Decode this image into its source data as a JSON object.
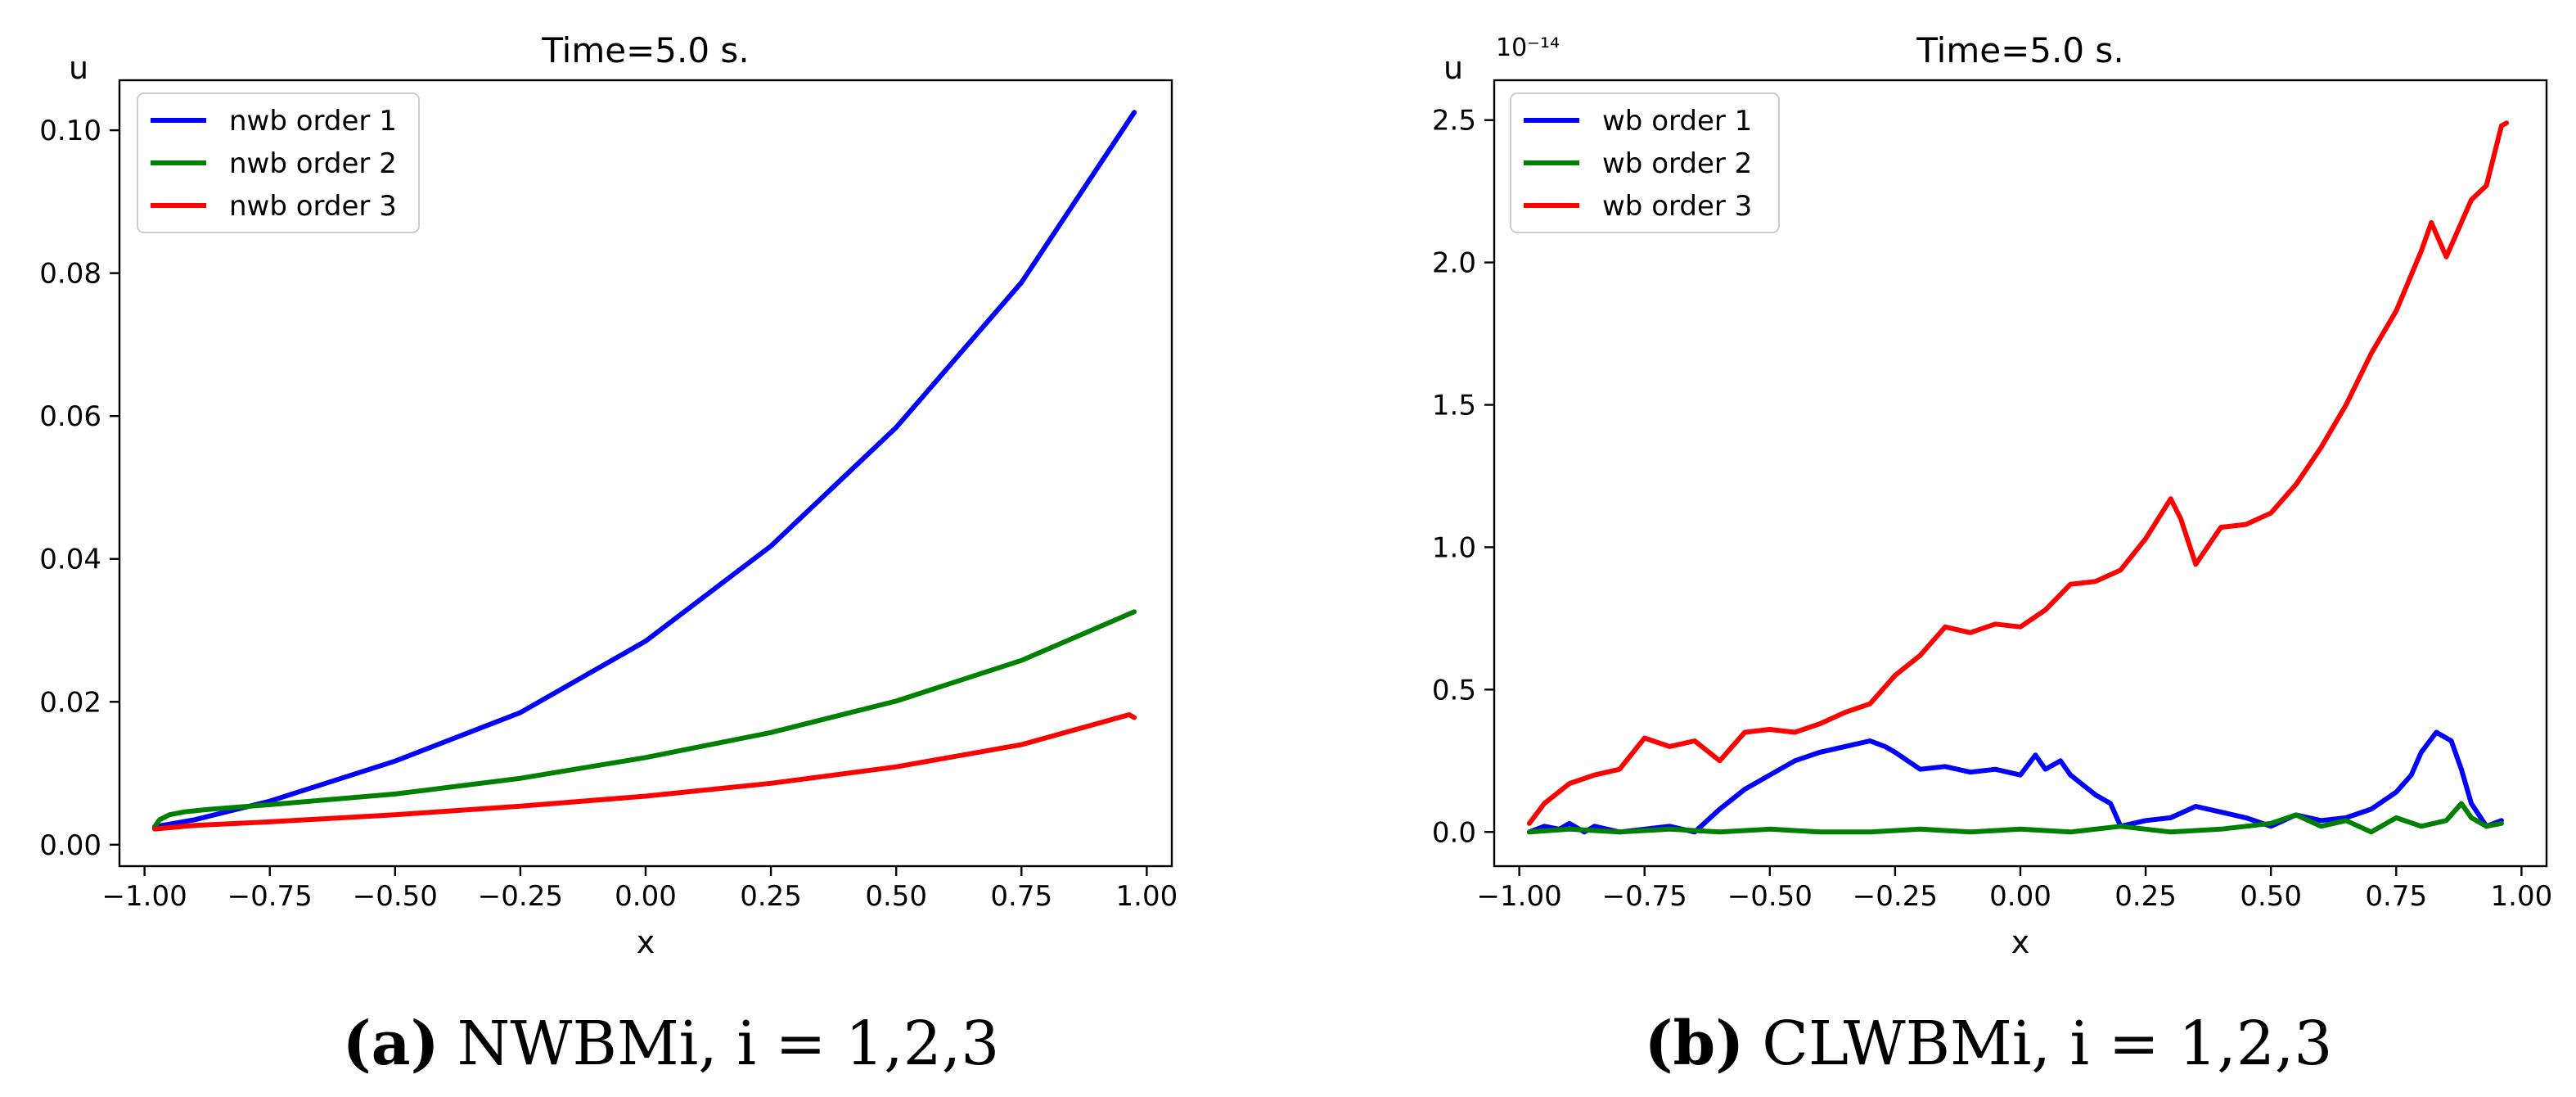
{
  "chart_data": [
    {
      "type": "line",
      "title": "Time=5.0 s.",
      "xlabel": "x",
      "ylabel": "u",
      "xlim": [
        -1.05,
        1.05
      ],
      "ylim": [
        -0.003,
        0.107
      ],
      "xticks": [
        -1.0,
        -0.75,
        -0.5,
        -0.25,
        0.0,
        0.25,
        0.5,
        0.75,
        1.0
      ],
      "xtick_labels": [
        "−1.00",
        "−0.75",
        "−0.50",
        "−0.25",
        "0.00",
        "0.25",
        "0.50",
        "0.75",
        "1.00"
      ],
      "yticks": [
        0.0,
        0.02,
        0.04,
        0.06,
        0.08,
        0.1
      ],
      "ytick_labels": [
        "0.00",
        "0.02",
        "0.04",
        "0.06",
        "0.08",
        "0.10"
      ],
      "legend_position": "top-left",
      "caption": {
        "letter": "(a)",
        "text": "NWBMi, i = 1,2,3"
      },
      "series": [
        {
          "name": "nwb order 1",
          "color": "#0000ff",
          "x": [
            -0.98,
            -0.9,
            -0.75,
            -0.5,
            -0.25,
            0.0,
            0.25,
            0.5,
            0.75,
            0.975
          ],
          "y": [
            0.0025,
            0.0035,
            0.0061,
            0.0117,
            0.0185,
            0.0285,
            0.0418,
            0.0584,
            0.0787,
            0.1025
          ]
        },
        {
          "name": "nwb order 2",
          "color": "#008000",
          "x": [
            -0.98,
            -0.97,
            -0.95,
            -0.92,
            -0.88,
            -0.75,
            -0.5,
            -0.25,
            0.0,
            0.25,
            0.5,
            0.75,
            0.975
          ],
          "y": [
            0.0025,
            0.0035,
            0.0042,
            0.0046,
            0.0049,
            0.0056,
            0.0071,
            0.0093,
            0.0122,
            0.0157,
            0.0201,
            0.0258,
            0.0326
          ]
        },
        {
          "name": "nwb order 3",
          "color": "#ff0000",
          "x": [
            -0.98,
            -0.9,
            -0.75,
            -0.5,
            -0.25,
            0.0,
            0.25,
            0.5,
            0.75,
            0.965,
            0.975
          ],
          "y": [
            0.0022,
            0.0027,
            0.0032,
            0.0042,
            0.0054,
            0.0068,
            0.0086,
            0.0109,
            0.014,
            0.0182,
            0.0178
          ]
        }
      ]
    },
    {
      "type": "line",
      "title": "Time=5.0 s.",
      "xlabel": "x",
      "ylabel": "u",
      "y_scale_label": "10⁻¹⁴",
      "xlim": [
        -1.05,
        1.05
      ],
      "ylim": [
        -0.12,
        2.64
      ],
      "xticks": [
        -1.0,
        -0.75,
        -0.5,
        -0.25,
        0.0,
        0.25,
        0.5,
        0.75,
        1.0
      ],
      "xtick_labels": [
        "−1.00",
        "−0.75",
        "−0.50",
        "−0.25",
        "0.00",
        "0.25",
        "0.50",
        "0.75",
        "1.00"
      ],
      "yticks": [
        0.0,
        0.5,
        1.0,
        1.5,
        2.0,
        2.5
      ],
      "ytick_labels": [
        "0.0",
        "0.5",
        "1.0",
        "1.5",
        "2.0",
        "2.5"
      ],
      "legend_position": "top-left",
      "caption": {
        "letter": "(b)",
        "text": "CLWBMi, i = 1,2,3"
      },
      "series": [
        {
          "name": "wb order 1",
          "color": "#0000ff",
          "x": [
            -0.98,
            -0.95,
            -0.92,
            -0.9,
            -0.87,
            -0.85,
            -0.8,
            -0.75,
            -0.7,
            -0.65,
            -0.6,
            -0.55,
            -0.5,
            -0.45,
            -0.4,
            -0.35,
            -0.3,
            -0.27,
            -0.25,
            -0.2,
            -0.15,
            -0.1,
            -0.05,
            0.0,
            0.03,
            0.05,
            0.08,
            0.1,
            0.15,
            0.18,
            0.2,
            0.25,
            0.3,
            0.35,
            0.4,
            0.45,
            0.5,
            0.55,
            0.6,
            0.65,
            0.7,
            0.75,
            0.78,
            0.8,
            0.83,
            0.86,
            0.88,
            0.9,
            0.93,
            0.96
          ],
          "y": [
            0.0,
            0.02,
            0.01,
            0.03,
            0.0,
            0.02,
            0.0,
            0.01,
            0.02,
            0.0,
            0.08,
            0.15,
            0.2,
            0.25,
            0.28,
            0.3,
            0.32,
            0.3,
            0.28,
            0.22,
            0.23,
            0.21,
            0.22,
            0.2,
            0.27,
            0.22,
            0.25,
            0.2,
            0.13,
            0.1,
            0.02,
            0.04,
            0.05,
            0.09,
            0.07,
            0.05,
            0.02,
            0.06,
            0.04,
            0.05,
            0.08,
            0.14,
            0.2,
            0.28,
            0.35,
            0.32,
            0.22,
            0.1,
            0.02,
            0.04
          ]
        },
        {
          "name": "wb order 2",
          "color": "#008000",
          "x": [
            -0.98,
            -0.9,
            -0.8,
            -0.7,
            -0.6,
            -0.5,
            -0.4,
            -0.3,
            -0.2,
            -0.1,
            0.0,
            0.1,
            0.2,
            0.3,
            0.4,
            0.5,
            0.55,
            0.6,
            0.65,
            0.7,
            0.75,
            0.8,
            0.85,
            0.88,
            0.9,
            0.93,
            0.96
          ],
          "y": [
            0.0,
            0.01,
            0.0,
            0.01,
            0.0,
            0.01,
            0.0,
            0.0,
            0.01,
            0.0,
            0.01,
            0.0,
            0.02,
            0.0,
            0.01,
            0.03,
            0.06,
            0.02,
            0.04,
            0.0,
            0.05,
            0.02,
            0.04,
            0.1,
            0.05,
            0.02,
            0.03
          ]
        },
        {
          "name": "wb order 3",
          "color": "#ff0000",
          "x": [
            -0.98,
            -0.95,
            -0.9,
            -0.85,
            -0.8,
            -0.75,
            -0.7,
            -0.65,
            -0.6,
            -0.55,
            -0.5,
            -0.45,
            -0.4,
            -0.35,
            -0.3,
            -0.25,
            -0.2,
            -0.15,
            -0.1,
            -0.05,
            0.0,
            0.05,
            0.1,
            0.15,
            0.2,
            0.25,
            0.3,
            0.32,
            0.35,
            0.4,
            0.45,
            0.5,
            0.55,
            0.6,
            0.65,
            0.7,
            0.75,
            0.8,
            0.82,
            0.85,
            0.9,
            0.93,
            0.96,
            0.97
          ],
          "y": [
            0.03,
            0.1,
            0.17,
            0.2,
            0.22,
            0.33,
            0.3,
            0.32,
            0.25,
            0.35,
            0.36,
            0.35,
            0.38,
            0.42,
            0.45,
            0.55,
            0.62,
            0.72,
            0.7,
            0.73,
            0.72,
            0.78,
            0.87,
            0.88,
            0.92,
            1.03,
            1.17,
            1.1,
            0.94,
            1.07,
            1.08,
            1.12,
            1.22,
            1.35,
            1.5,
            1.68,
            1.83,
            2.04,
            2.14,
            2.02,
            2.22,
            2.27,
            2.48,
            2.49
          ]
        }
      ]
    }
  ]
}
